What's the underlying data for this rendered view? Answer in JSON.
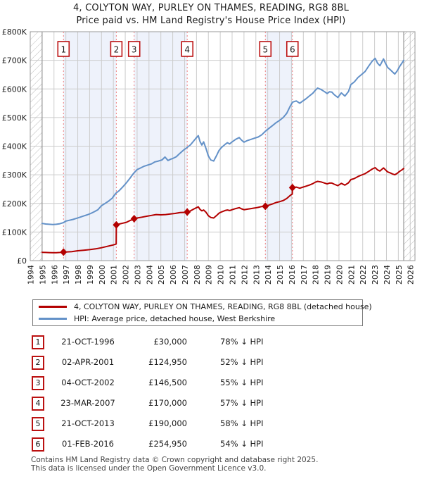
{
  "title": {
    "line1": "4, COLYTON WAY, PURLEY ON THAMES, READING, RG8 8BL",
    "line2": "Price paid vs. HM Land Registry's House Price Index (HPI)"
  },
  "legend": {
    "property_label": "4, COLYTON WAY, PURLEY ON THAMES, READING, RG8 8BL (detached house)",
    "hpi_label": "HPI: Average price, detached house, West Berkshire"
  },
  "colors": {
    "property": "#b30000",
    "hpi": "#6391c8",
    "band": "#eef2fb",
    "grid": "#cccccc",
    "plot_border": "#999999",
    "hatch_line": "#bbbbbb",
    "hatch_border": "#888888",
    "sale_dashed_line": "#ef8080",
    "sale_box_border": "#bb1111"
  },
  "sales": [
    {
      "num": "1",
      "date": "21-OCT-1996",
      "price": "£30,000",
      "vs_hpi": "78% ↓ HPI",
      "year": 1996.8,
      "value_k": 30
    },
    {
      "num": "2",
      "date": "02-APR-2001",
      "price": "£124,950",
      "vs_hpi": "52% ↓ HPI",
      "year": 2001.25,
      "value_k": 124.95
    },
    {
      "num": "3",
      "date": "04-OCT-2002",
      "price": "£146,500",
      "vs_hpi": "55% ↓ HPI",
      "year": 2002.75,
      "value_k": 146.5
    },
    {
      "num": "4",
      "date": "23-MAR-2007",
      "price": "£170,000",
      "vs_hpi": "57% ↓ HPI",
      "year": 2007.22,
      "value_k": 170
    },
    {
      "num": "5",
      "date": "21-OCT-2013",
      "price": "£190,000",
      "vs_hpi": "58% ↓ HPI",
      "year": 2013.8,
      "value_k": 190
    },
    {
      "num": "6",
      "date": "01-FEB-2016",
      "price": "£254,950",
      "vs_hpi": "54% ↓ HPI",
      "year": 2016.08,
      "value_k": 254.95
    }
  ],
  "footer": {
    "line1": "Contains HM Land Registry data © Crown copyright and database right 2025.",
    "line2": "This data is licensed under the Open Government Licence v3.0."
  },
  "chart_data": {
    "type": "line",
    "title": "4, COLYTON WAY, PURLEY ON THAMES, READING, RG8 8BL — Price paid vs. HM Land Registry's House Price Index (HPI)",
    "units": "GBP thousands",
    "xlim": [
      1994,
      2026.4
    ],
    "ylim": [
      0,
      800
    ],
    "x_ticks": [
      1994,
      1995,
      1996,
      1997,
      1998,
      1999,
      2000,
      2001,
      2002,
      2003,
      2004,
      2005,
      2006,
      2007,
      2008,
      2009,
      2010,
      2011,
      2012,
      2013,
      2014,
      2015,
      2016,
      2017,
      2018,
      2019,
      2020,
      2021,
      2022,
      2023,
      2024,
      2025,
      2026
    ],
    "y_ticks": [
      {
        "value": 0,
        "label": "£0"
      },
      {
        "value": 100,
        "label": "£100K"
      },
      {
        "value": 200,
        "label": "£200K"
      },
      {
        "value": 300,
        "label": "£300K"
      },
      {
        "value": 400,
        "label": "£400K"
      },
      {
        "value": 500,
        "label": "£500K"
      },
      {
        "value": 600,
        "label": "£600K"
      },
      {
        "value": 700,
        "label": "£700K"
      },
      {
        "value": 800,
        "label": "£800K"
      }
    ],
    "grid": true,
    "legend_position": "below",
    "shaded_intervals": [
      [
        1996.8,
        2001.25
      ],
      [
        2002.75,
        2007.22
      ],
      [
        2013.8,
        2016.08
      ]
    ],
    "hatch_regions": [
      [
        1994,
        1995.0
      ],
      [
        2025.45,
        2026.4
      ]
    ],
    "series": [
      {
        "name": "property_price_paid",
        "color": "#b30000",
        "points": [
          [
            1995.0,
            29
          ],
          [
            1995.3,
            28.5
          ],
          [
            1995.6,
            28
          ],
          [
            1995.9,
            27.5
          ],
          [
            1996.2,
            27.8
          ],
          [
            1996.5,
            28.5
          ],
          [
            1996.8,
            30
          ],
          [
            1997.1,
            30.6
          ],
          [
            1997.5,
            31.6
          ],
          [
            1998.0,
            34.5
          ],
          [
            1998.5,
            36.5
          ],
          [
            1999.0,
            38.5
          ],
          [
            1999.5,
            41
          ],
          [
            2000.0,
            45
          ],
          [
            2000.5,
            50
          ],
          [
            2001.0,
            55
          ],
          [
            2001.24,
            58
          ],
          [
            2001.25,
            124.95
          ],
          [
            2001.5,
            128
          ],
          [
            2001.8,
            131
          ],
          [
            2002.1,
            134
          ],
          [
            2002.4,
            140
          ],
          [
            2002.74,
            145.8
          ],
          [
            2002.75,
            146.5
          ],
          [
            2003.0,
            149
          ],
          [
            2003.4,
            152
          ],
          [
            2003.8,
            155
          ],
          [
            2004.2,
            158
          ],
          [
            2004.6,
            161
          ],
          [
            2005.0,
            160
          ],
          [
            2005.4,
            161
          ],
          [
            2005.8,
            163
          ],
          [
            2006.2,
            165
          ],
          [
            2006.6,
            168
          ],
          [
            2007.0,
            168.5
          ],
          [
            2007.21,
            169
          ],
          [
            2007.22,
            170
          ],
          [
            2007.5,
            174
          ],
          [
            2007.8,
            181
          ],
          [
            2008.0,
            185
          ],
          [
            2008.15,
            188
          ],
          [
            2008.3,
            179
          ],
          [
            2008.45,
            174
          ],
          [
            2008.6,
            177
          ],
          [
            2008.8,
            169
          ],
          [
            2009.0,
            157
          ],
          [
            2009.2,
            151
          ],
          [
            2009.45,
            149
          ],
          [
            2009.7,
            158
          ],
          [
            2009.9,
            166
          ],
          [
            2010.1,
            170
          ],
          [
            2010.4,
            175
          ],
          [
            2010.6,
            177
          ],
          [
            2010.8,
            175
          ],
          [
            2011.0,
            178
          ],
          [
            2011.3,
            182
          ],
          [
            2011.6,
            185
          ],
          [
            2011.8,
            181
          ],
          [
            2012.0,
            178
          ],
          [
            2012.3,
            180
          ],
          [
            2012.6,
            182
          ],
          [
            2012.9,
            184
          ],
          [
            2013.2,
            186
          ],
          [
            2013.5,
            189
          ],
          [
            2013.8,
            190
          ],
          [
            2014.1,
            194
          ],
          [
            2014.4,
            198
          ],
          [
            2014.7,
            203
          ],
          [
            2015.0,
            206
          ],
          [
            2015.3,
            210
          ],
          [
            2015.6,
            217
          ],
          [
            2015.9,
            228
          ],
          [
            2016.07,
            233
          ],
          [
            2016.08,
            254.95
          ],
          [
            2016.4,
            257
          ],
          [
            2016.7,
            253
          ],
          [
            2016.9,
            256
          ],
          [
            2017.2,
            260
          ],
          [
            2017.5,
            264
          ],
          [
            2017.8,
            269
          ],
          [
            2018.0,
            274
          ],
          [
            2018.2,
            277
          ],
          [
            2018.5,
            275
          ],
          [
            2018.8,
            271
          ],
          [
            2019.0,
            268
          ],
          [
            2019.2,
            271
          ],
          [
            2019.4,
            271
          ],
          [
            2019.6,
            267
          ],
          [
            2019.9,
            262
          ],
          [
            2020.2,
            270
          ],
          [
            2020.5,
            264
          ],
          [
            2020.8,
            272
          ],
          [
            2021.0,
            283
          ],
          [
            2021.3,
            287
          ],
          [
            2021.6,
            294
          ],
          [
            2021.9,
            299
          ],
          [
            2022.2,
            304
          ],
          [
            2022.5,
            312
          ],
          [
            2022.8,
            320
          ],
          [
            2023.05,
            325
          ],
          [
            2023.25,
            317
          ],
          [
            2023.45,
            313
          ],
          [
            2023.75,
            324
          ],
          [
            2023.9,
            318
          ],
          [
            2024.1,
            310
          ],
          [
            2024.3,
            307
          ],
          [
            2024.5,
            303
          ],
          [
            2024.7,
            300
          ],
          [
            2024.9,
            305
          ],
          [
            2025.1,
            312
          ],
          [
            2025.3,
            317
          ],
          [
            2025.45,
            322
          ]
        ]
      },
      {
        "name": "hpi_average_detached_west_berkshire",
        "color": "#6391c8",
        "points": [
          [
            1995.0,
            130
          ],
          [
            1995.3,
            128
          ],
          [
            1995.6,
            127
          ],
          [
            1995.9,
            126
          ],
          [
            1996.2,
            127
          ],
          [
            1996.5,
            129
          ],
          [
            1996.8,
            133
          ],
          [
            1997.0,
            138
          ],
          [
            1997.3,
            141
          ],
          [
            1997.6,
            144
          ],
          [
            1997.9,
            148
          ],
          [
            1998.2,
            152
          ],
          [
            1998.5,
            156
          ],
          [
            1998.8,
            160
          ],
          [
            1999.1,
            165
          ],
          [
            1999.4,
            171
          ],
          [
            1999.7,
            178
          ],
          [
            2000.0,
            192
          ],
          [
            2000.3,
            200
          ],
          [
            2000.6,
            208
          ],
          [
            2000.9,
            218
          ],
          [
            2001.2,
            235
          ],
          [
            2001.5,
            245
          ],
          [
            2001.8,
            258
          ],
          [
            2002.1,
            272
          ],
          [
            2002.4,
            288
          ],
          [
            2002.7,
            305
          ],
          [
            2003.0,
            318
          ],
          [
            2003.3,
            324
          ],
          [
            2003.6,
            330
          ],
          [
            2003.9,
            334
          ],
          [
            2004.2,
            338
          ],
          [
            2004.5,
            345
          ],
          [
            2004.8,
            348
          ],
          [
            2005.1,
            352
          ],
          [
            2005.35,
            362
          ],
          [
            2005.6,
            350
          ],
          [
            2005.85,
            355
          ],
          [
            2006.0,
            357
          ],
          [
            2006.3,
            363
          ],
          [
            2006.6,
            375
          ],
          [
            2006.9,
            386
          ],
          [
            2007.2,
            395
          ],
          [
            2007.5,
            405
          ],
          [
            2007.8,
            420
          ],
          [
            2008.0,
            430
          ],
          [
            2008.15,
            437
          ],
          [
            2008.3,
            416
          ],
          [
            2008.45,
            404
          ],
          [
            2008.6,
            415
          ],
          [
            2008.8,
            392
          ],
          [
            2009.0,
            366
          ],
          [
            2009.2,
            352
          ],
          [
            2009.45,
            348
          ],
          [
            2009.7,
            368
          ],
          [
            2009.9,
            385
          ],
          [
            2010.1,
            395
          ],
          [
            2010.4,
            406
          ],
          [
            2010.6,
            412
          ],
          [
            2010.8,
            408
          ],
          [
            2011.0,
            415
          ],
          [
            2011.3,
            424
          ],
          [
            2011.6,
            430
          ],
          [
            2011.8,
            421
          ],
          [
            2012.0,
            414
          ],
          [
            2012.3,
            420
          ],
          [
            2012.6,
            424
          ],
          [
            2012.9,
            428
          ],
          [
            2013.2,
            432
          ],
          [
            2013.5,
            440
          ],
          [
            2013.8,
            452
          ],
          [
            2014.1,
            462
          ],
          [
            2014.4,
            472
          ],
          [
            2014.7,
            482
          ],
          [
            2015.0,
            490
          ],
          [
            2015.3,
            500
          ],
          [
            2015.6,
            515
          ],
          [
            2015.9,
            540
          ],
          [
            2016.1,
            554
          ],
          [
            2016.4,
            558
          ],
          [
            2016.7,
            550
          ],
          [
            2016.9,
            556
          ],
          [
            2017.2,
            565
          ],
          [
            2017.5,
            575
          ],
          [
            2017.8,
            585
          ],
          [
            2018.0,
            595
          ],
          [
            2018.2,
            603
          ],
          [
            2018.5,
            598
          ],
          [
            2018.8,
            590
          ],
          [
            2019.0,
            584
          ],
          [
            2019.2,
            590
          ],
          [
            2019.4,
            589
          ],
          [
            2019.6,
            580
          ],
          [
            2019.9,
            570
          ],
          [
            2020.2,
            586
          ],
          [
            2020.5,
            575
          ],
          [
            2020.8,
            591
          ],
          [
            2021.0,
            615
          ],
          [
            2021.3,
            625
          ],
          [
            2021.6,
            640
          ],
          [
            2021.9,
            650
          ],
          [
            2022.2,
            661
          ],
          [
            2022.5,
            680
          ],
          [
            2022.8,
            697
          ],
          [
            2023.05,
            707
          ],
          [
            2023.25,
            690
          ],
          [
            2023.45,
            681
          ],
          [
            2023.75,
            705
          ],
          [
            2023.9,
            691
          ],
          [
            2024.1,
            675
          ],
          [
            2024.3,
            668
          ],
          [
            2024.5,
            660
          ],
          [
            2024.7,
            652
          ],
          [
            2024.9,
            663
          ],
          [
            2025.1,
            678
          ],
          [
            2025.3,
            690
          ],
          [
            2025.45,
            700
          ]
        ]
      }
    ]
  }
}
